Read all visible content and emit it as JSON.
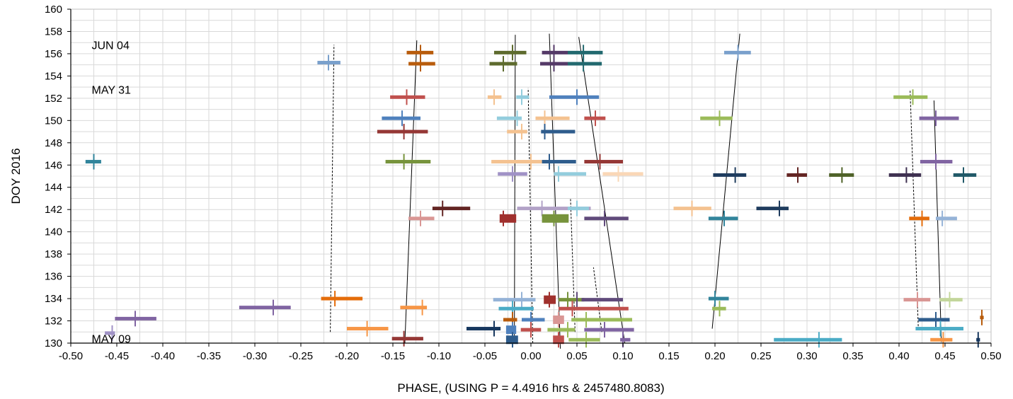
{
  "chart_data": {
    "type": "scatter",
    "xlabel": "PHASE, (USING P = 4.4916 hrs & 2457480.8083)",
    "ylabel": "DOY 2016",
    "xlim": [
      -0.5,
      0.5
    ],
    "ylim": [
      130,
      160
    ],
    "x_ticks": [
      "-0.50",
      "-0.45",
      "-0.40",
      "-0.35",
      "-0.30",
      "-0.25",
      "-0.20",
      "-0.15",
      "-0.10",
      "-0.05",
      "0.00",
      "0.05",
      "0.10",
      "0.15",
      "0.20",
      "0.25",
      "0.30",
      "0.35",
      "0.40",
      "0.45",
      "0.50"
    ],
    "y_ticks": [
      "130",
      "132",
      "134",
      "136",
      "138",
      "140",
      "142",
      "144",
      "146",
      "148",
      "150",
      "152",
      "154",
      "156",
      "158",
      "160"
    ],
    "grid": true,
    "annotations": [
      {
        "text": "JUN 04",
        "x": -0.475,
        "y": 156.8
      },
      {
        "text": "MAY 31",
        "x": -0.475,
        "y": 152.8
      },
      {
        "text": "MAY 09",
        "x": -0.475,
        "y": 130.4
      }
    ],
    "points": [
      {
        "x": -0.22,
        "xmin": -0.232,
        "xmax": -0.207,
        "y": 155.2,
        "color": "#7aa0cc"
      },
      {
        "x": -0.12,
        "xmin": -0.135,
        "xmax": -0.106,
        "y": 156.1,
        "color": "#b85c0c"
      },
      {
        "x": -0.12,
        "xmin": -0.133,
        "xmax": -0.104,
        "y": 155.1,
        "color": "#b85c0c"
      },
      {
        "x": -0.02,
        "xmin": -0.04,
        "xmax": -0.005,
        "y": 156.1,
        "color": "#5e6b2e"
      },
      {
        "x": -0.03,
        "xmin": -0.045,
        "xmax": -0.015,
        "y": 155.1,
        "color": "#5e6b2e"
      },
      {
        "x": 0.025,
        "xmin": 0.012,
        "xmax": 0.04,
        "y": 156.1,
        "color": "#553a68"
      },
      {
        "x": 0.025,
        "xmin": 0.01,
        "xmax": 0.04,
        "y": 155.1,
        "color": "#553a68"
      },
      {
        "x": 0.057,
        "xmin": 0.04,
        "xmax": 0.078,
        "y": 156.1,
        "color": "#22696f"
      },
      {
        "x": 0.057,
        "xmin": 0.04,
        "xmax": 0.077,
        "y": 155.1,
        "color": "#22696f"
      },
      {
        "x": 0.225,
        "xmin": 0.21,
        "xmax": 0.239,
        "y": 156.1,
        "color": "#7aa0cc"
      },
      {
        "x": -0.135,
        "xmin": -0.153,
        "xmax": -0.115,
        "y": 152.1,
        "color": "#c0504d"
      },
      {
        "x": -0.04,
        "xmin": -0.047,
        "xmax": -0.032,
        "y": 152.1,
        "color": "#f4c290"
      },
      {
        "x": -0.01,
        "xmin": -0.016,
        "xmax": -0.002,
        "y": 152.1,
        "color": "#93cddd"
      },
      {
        "x": 0.05,
        "xmin": 0.02,
        "xmax": 0.074,
        "y": 152.1,
        "color": "#4f81bd"
      },
      {
        "x": 0.415,
        "xmin": 0.394,
        "xmax": 0.431,
        "y": 152.1,
        "color": "#9bbb59"
      },
      {
        "x": -0.14,
        "xmin": -0.162,
        "xmax": -0.12,
        "y": 150.2,
        "color": "#4f81bd"
      },
      {
        "x": -0.015,
        "xmin": -0.037,
        "xmax": -0.01,
        "y": 150.2,
        "color": "#93cddd"
      },
      {
        "x": 0.015,
        "xmin": 0.005,
        "xmax": 0.042,
        "y": 150.2,
        "color": "#f4c290"
      },
      {
        "x": 0.07,
        "xmin": 0.058,
        "xmax": 0.081,
        "y": 150.2,
        "color": "#c0504d"
      },
      {
        "x": 0.205,
        "xmin": 0.184,
        "xmax": 0.219,
        "y": 150.2,
        "color": "#9bbb59"
      },
      {
        "x": 0.44,
        "xmin": 0.422,
        "xmax": 0.465,
        "y": 150.2,
        "color": "#8064a2"
      },
      {
        "x": -0.138,
        "xmin": -0.167,
        "xmax": -0.112,
        "y": 149.0,
        "color": "#953735"
      },
      {
        "x": -0.01,
        "xmin": -0.026,
        "xmax": -0.004,
        "y": 149.0,
        "color": "#f4c290"
      },
      {
        "x": 0.015,
        "xmin": 0.011,
        "xmax": 0.048,
        "y": 149.0,
        "color": "#2e5c8c"
      },
      {
        "x": -0.475,
        "xmin": -0.484,
        "xmax": -0.467,
        "y": 146.3,
        "color": "#31849b"
      },
      {
        "x": -0.138,
        "xmin": -0.158,
        "xmax": -0.109,
        "y": 146.3,
        "color": "#77933c"
      },
      {
        "x": 0.0,
        "xmin": -0.043,
        "xmax": 0.012,
        "y": 146.3,
        "color": "#f4c290"
      },
      {
        "x": 0.02,
        "xmin": 0.012,
        "xmax": 0.049,
        "y": 146.3,
        "color": "#2e5c8c"
      },
      {
        "x": 0.075,
        "xmin": 0.058,
        "xmax": 0.1,
        "y": 146.3,
        "color": "#953735"
      },
      {
        "x": 0.44,
        "xmin": 0.423,
        "xmax": 0.458,
        "y": 146.3,
        "color": "#8064a2"
      },
      {
        "x": -0.02,
        "xmin": -0.036,
        "xmax": -0.004,
        "y": 145.2,
        "color": "#a092c6"
      },
      {
        "x": 0.03,
        "xmin": 0.025,
        "xmax": 0.06,
        "y": 145.2,
        "color": "#93cddd"
      },
      {
        "x": 0.095,
        "xmin": 0.078,
        "xmax": 0.122,
        "y": 145.2,
        "color": "#fad7b6"
      },
      {
        "x": 0.222,
        "xmin": 0.198,
        "xmax": 0.234,
        "y": 145.1,
        "color": "#1f3c5e"
      },
      {
        "x": 0.29,
        "xmin": 0.278,
        "xmax": 0.3,
        "y": 145.1,
        "color": "#632523"
      },
      {
        "x": 0.338,
        "xmin": 0.324,
        "xmax": 0.351,
        "y": 145.1,
        "color": "#4f6228"
      },
      {
        "x": 0.408,
        "xmin": 0.389,
        "xmax": 0.424,
        "y": 145.1,
        "color": "#3f3151"
      },
      {
        "x": 0.47,
        "xmin": 0.459,
        "xmax": 0.484,
        "y": 145.1,
        "color": "#215968"
      },
      {
        "x": -0.096,
        "xmin": -0.107,
        "xmax": -0.066,
        "y": 142.1,
        "color": "#632523"
      },
      {
        "x": 0.012,
        "xmin": -0.015,
        "xmax": 0.065,
        "y": 142.1,
        "color": "#b2a2c7"
      },
      {
        "x": 0.05,
        "xmin": 0.04,
        "xmax": 0.063,
        "y": 142.1,
        "color": "#93cddd"
      },
      {
        "x": 0.175,
        "xmin": 0.155,
        "xmax": 0.196,
        "y": 142.1,
        "color": "#f4c290"
      },
      {
        "x": 0.27,
        "xmin": 0.245,
        "xmax": 0.28,
        "y": 142.1,
        "color": "#1f3c5e"
      },
      {
        "x": -0.12,
        "xmin": -0.133,
        "xmax": -0.105,
        "y": 141.2,
        "color": "#d99694"
      },
      {
        "x": -0.03,
        "xmin": -0.034,
        "xmax": -0.016,
        "y": 141.2,
        "color": "#a0302d",
        "thick": true
      },
      {
        "x": 0.025,
        "xmin": 0.012,
        "xmax": 0.041,
        "y": 141.2,
        "color": "#77933c",
        "thick": true
      },
      {
        "x": 0.08,
        "xmin": 0.058,
        "xmax": 0.106,
        "y": 141.2,
        "color": "#604a7b"
      },
      {
        "x": 0.21,
        "xmin": 0.193,
        "xmax": 0.225,
        "y": 141.2,
        "color": "#31849b"
      },
      {
        "x": 0.425,
        "xmin": 0.411,
        "xmax": 0.433,
        "y": 141.2,
        "color": "#e46c0a"
      },
      {
        "x": 0.447,
        "xmin": 0.44,
        "xmax": 0.463,
        "y": 141.2,
        "color": "#95b3d7"
      },
      {
        "x": -0.455,
        "xmin": -0.463,
        "xmax": -0.452,
        "y": 130.9,
        "color": "#a092c6"
      },
      {
        "x": -0.43,
        "xmin": -0.452,
        "xmax": -0.407,
        "y": 132.2,
        "color": "#8064a2"
      },
      {
        "x": -0.28,
        "xmin": -0.317,
        "xmax": -0.261,
        "y": 133.2,
        "color": "#8064a2"
      },
      {
        "x": -0.213,
        "xmin": -0.228,
        "xmax": -0.183,
        "y": 134.0,
        "color": "#e46c0a"
      },
      {
        "x": -0.118,
        "xmin": -0.142,
        "xmax": -0.113,
        "y": 133.2,
        "color": "#f79646"
      },
      {
        "x": -0.178,
        "xmin": -0.2,
        "xmax": -0.155,
        "y": 131.3,
        "color": "#f79646"
      },
      {
        "x": -0.138,
        "xmin": -0.151,
        "xmax": -0.117,
        "y": 130.4,
        "color": "#953735"
      },
      {
        "x": -0.01,
        "xmin": -0.041,
        "xmax": 0.005,
        "y": 133.9,
        "color": "#95b3d7"
      },
      {
        "x": -0.02,
        "xmin": -0.035,
        "xmax": 0.003,
        "y": 133.1,
        "color": "#4bacc6"
      },
      {
        "x": -0.04,
        "xmin": -0.07,
        "xmax": -0.033,
        "y": 131.3,
        "color": "#17375e"
      },
      {
        "x": 0.02,
        "xmin": 0.014,
        "xmax": 0.027,
        "y": 133.9,
        "color": "#a0302d",
        "thick": true
      },
      {
        "x": 0.04,
        "xmin": 0.03,
        "xmax": 0.058,
        "y": 133.9,
        "color": "#77933c"
      },
      {
        "x": 0.05,
        "xmin": 0.055,
        "xmax": 0.1,
        "y": 133.9,
        "color": "#604a7b"
      },
      {
        "x": 0.045,
        "xmin": 0.03,
        "xmax": 0.106,
        "y": 133.1,
        "color": "#c0504d"
      },
      {
        "x": -0.02,
        "xmin": -0.03,
        "xmax": -0.015,
        "y": 132.1,
        "color": "#b85c0c"
      },
      {
        "x": 0.0,
        "xmin": -0.01,
        "xmax": 0.015,
        "y": 132.1,
        "color": "#4f81bd"
      },
      {
        "x": 0.03,
        "xmin": 0.024,
        "xmax": 0.036,
        "y": 132.1,
        "color": "#d99694",
        "thick": true
      },
      {
        "x": 0.06,
        "xmin": 0.044,
        "xmax": 0.11,
        "y": 132.1,
        "color": "#9bbb59"
      },
      {
        "x": -0.02,
        "xmin": -0.027,
        "xmax": -0.016,
        "y": 131.2,
        "color": "#4f81bd",
        "thick": true
      },
      {
        "x": 0.0,
        "xmin": -0.011,
        "xmax": 0.011,
        "y": 131.2,
        "color": "#c0504d"
      },
      {
        "x": 0.04,
        "xmin": 0.018,
        "xmax": 0.048,
        "y": 131.2,
        "color": "#9bbb59"
      },
      {
        "x": 0.08,
        "xmin": 0.058,
        "xmax": 0.112,
        "y": 131.2,
        "color": "#8064a2"
      },
      {
        "x": -0.02,
        "xmin": -0.027,
        "xmax": -0.014,
        "y": 130.3,
        "color": "#2e5c8c",
        "thick": true
      },
      {
        "x": 0.03,
        "xmin": 0.024,
        "xmax": 0.036,
        "y": 130.3,
        "color": "#c0504d",
        "thick": true
      },
      {
        "x": 0.06,
        "xmin": 0.041,
        "xmax": 0.075,
        "y": 130.3,
        "color": "#9bbb59"
      },
      {
        "x": 0.1,
        "xmin": 0.097,
        "xmax": 0.108,
        "y": 130.3,
        "color": "#8064a2"
      },
      {
        "x": 0.2,
        "xmin": 0.193,
        "xmax": 0.215,
        "y": 134.0,
        "color": "#31849b"
      },
      {
        "x": 0.205,
        "xmin": 0.197,
        "xmax": 0.212,
        "y": 133.1,
        "color": "#9bbb59"
      },
      {
        "x": 0.313,
        "xmin": 0.264,
        "xmax": 0.338,
        "y": 130.3,
        "color": "#4bacc6"
      },
      {
        "x": 0.42,
        "xmin": 0.405,
        "xmax": 0.434,
        "y": 133.9,
        "color": "#d99694"
      },
      {
        "x": 0.455,
        "xmin": 0.444,
        "xmax": 0.469,
        "y": 133.9,
        "color": "#c3d69b"
      },
      {
        "x": 0.44,
        "xmin": 0.421,
        "xmax": 0.455,
        "y": 132.1,
        "color": "#2e5c8c"
      },
      {
        "x": 0.445,
        "xmin": 0.418,
        "xmax": 0.47,
        "y": 131.3,
        "color": "#4bacc6"
      },
      {
        "x": 0.448,
        "xmin": 0.434,
        "xmax": 0.458,
        "y": 130.3,
        "color": "#f79646"
      },
      {
        "x": 0.49,
        "xmin": 0.488,
        "xmax": 0.492,
        "y": 132.3,
        "color": "#b85c0c"
      },
      {
        "x": 0.486,
        "xmin": 0.484,
        "xmax": 0.488,
        "y": 130.3,
        "color": "#17375e"
      }
    ],
    "trend_lines": [
      {
        "style": "dashed",
        "points": [
          [
            -0.218,
            131.0
          ],
          [
            -0.214,
            156.8
          ]
        ]
      },
      {
        "style": "solid",
        "points": [
          [
            -0.137,
            130.0
          ],
          [
            -0.124,
            157.2
          ]
        ]
      },
      {
        "style": "solid",
        "points": [
          [
            -0.018,
            130.0
          ],
          [
            -0.017,
            157.7
          ]
        ]
      },
      {
        "style": "dashed",
        "points": [
          [
            0.002,
            130.0
          ],
          [
            -0.003,
            152.9
          ]
        ]
      },
      {
        "style": "solid",
        "points": [
          [
            0.032,
            129.5
          ],
          [
            0.02,
            157.8
          ]
        ]
      },
      {
        "style": "dashed",
        "points": [
          [
            0.048,
            131.0
          ],
          [
            0.043,
            143.0
          ]
        ]
      },
      {
        "style": "dashed",
        "points": [
          [
            0.077,
            131.0
          ],
          [
            0.068,
            136.8
          ]
        ]
      },
      {
        "style": "solid",
        "points": [
          [
            0.102,
            130.0
          ],
          [
            0.052,
            157.5
          ]
        ]
      },
      {
        "style": "solid",
        "points": [
          [
            0.197,
            131.3
          ],
          [
            0.227,
            157.8
          ]
        ]
      },
      {
        "style": "dashed",
        "points": [
          [
            0.421,
            131.2
          ],
          [
            0.412,
            152.8
          ]
        ]
      },
      {
        "style": "solid",
        "points": [
          [
            0.446,
            130.1
          ],
          [
            0.438,
            151.8
          ]
        ]
      }
    ]
  }
}
